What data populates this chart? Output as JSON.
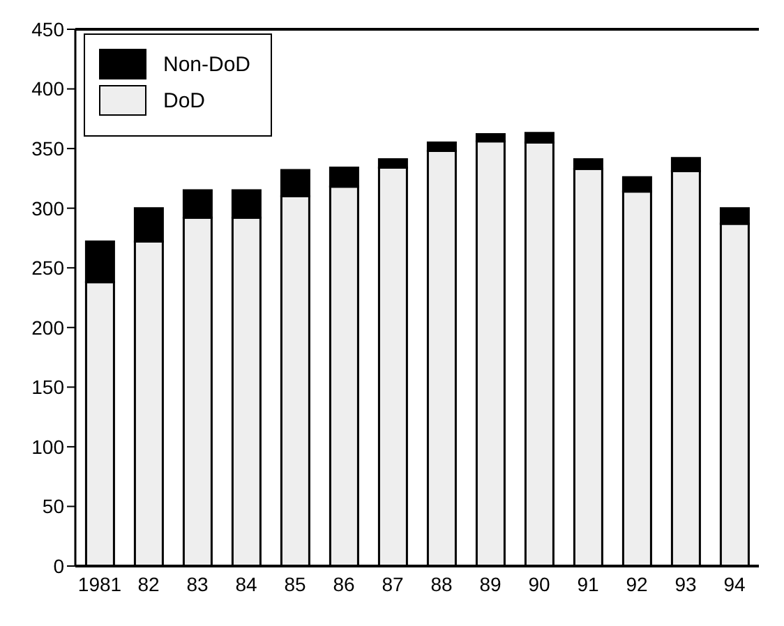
{
  "chart_data": {
    "type": "bar",
    "stacked": true,
    "categories": [
      "1981",
      "82",
      "83",
      "84",
      "85",
      "86",
      "87",
      "88",
      "89",
      "90",
      "91",
      "92",
      "93",
      "94"
    ],
    "series": [
      {
        "name": "DoD",
        "color": "#eeeeee",
        "values": [
          238,
          272,
          292,
          292,
          310,
          318,
          334,
          348,
          356,
          355,
          333,
          314,
          331,
          287
        ]
      },
      {
        "name": "Non-DoD",
        "color": "#000000",
        "values": [
          34,
          28,
          23,
          23,
          22,
          16,
          7,
          7,
          6,
          8,
          8,
          12,
          11,
          13
        ]
      }
    ],
    "ylim": [
      0,
      450
    ],
    "yticks": [
      0,
      50,
      100,
      150,
      200,
      250,
      300,
      350,
      400,
      450
    ],
    "grid": false,
    "legend": "top left"
  }
}
